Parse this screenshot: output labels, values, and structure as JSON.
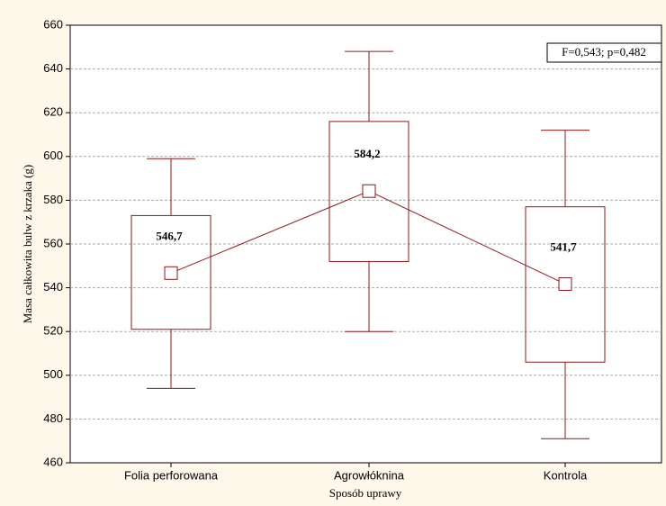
{
  "chart_data": {
    "type": "box",
    "x_label": "Sposób uprawy",
    "y_label": "Masa całkowita bulw z krzaka (g)",
    "annotation": "F=0,543; p=0,482",
    "categories": [
      "Folia perforowana",
      "Agrowłóknina",
      "Kontrola"
    ],
    "color": "#8b1a1a",
    "mean": [
      546.7,
      584.2,
      541.7
    ],
    "value_labels": [
      "546,7",
      "584,2",
      "541,7"
    ],
    "box_low": [
      521,
      552,
      506
    ],
    "box_high": [
      573,
      616,
      577
    ],
    "whisker_low": [
      494,
      520,
      471
    ],
    "whisker_high": [
      599,
      648,
      612
    ],
    "ylim": [
      460,
      660
    ],
    "yticks": [
      460,
      480,
      500,
      520,
      540,
      560,
      580,
      600,
      620,
      640,
      660
    ],
    "grid": true
  }
}
